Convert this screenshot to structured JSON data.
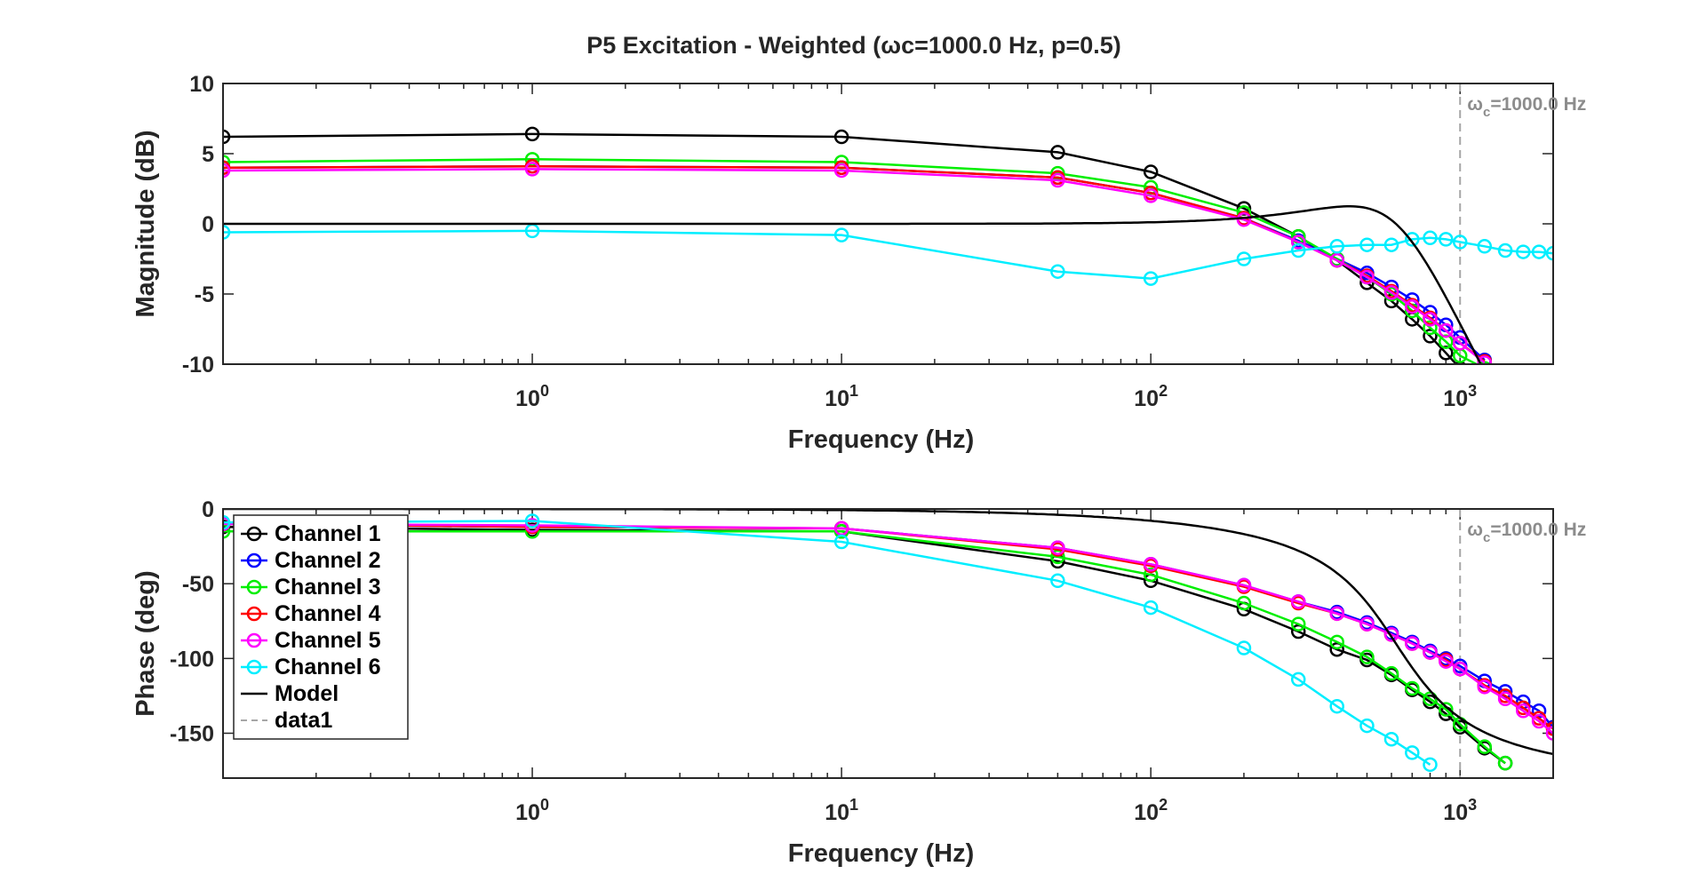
{
  "figure_title": "P5 Excitation - Weighted (ωc=1000.0 Hz, p=0.5)",
  "colors": {
    "Channel 1": "#000000",
    "Channel 2": "#0000ff",
    "Channel 3": "#00ee00",
    "Channel 4": "#ff0000",
    "Channel 5": "#ff00ff",
    "Channel 6": "#00eeff",
    "Model": "#000000",
    "data1": "#a6a6a6"
  },
  "chart_data": [
    {
      "type": "line",
      "title": "P5 Excitation - Weighted (ωc=1000.0 Hz, p=0.5)",
      "xlabel": "Frequency (Hz)",
      "ylabel": "Magnitude (dB)",
      "xscale": "log",
      "xlim": [
        0.1,
        2000
      ],
      "ylim": [
        -10,
        10
      ],
      "xticks": [
        1,
        10,
        100,
        1000
      ],
      "xtick_labels": [
        {
          "base": "10",
          "exp": "0"
        },
        {
          "base": "10",
          "exp": "1"
        },
        {
          "base": "10",
          "exp": "2"
        },
        {
          "base": "10",
          "exp": "3"
        }
      ],
      "yticks": [
        -10,
        -5,
        0,
        5,
        10
      ],
      "ytick_labels": [
        "-10",
        "-5",
        "0",
        "5",
        "10"
      ],
      "grid": false,
      "annotation": {
        "text_main": "ω",
        "text_sub": "c",
        "text_rest": "=1000.0 Hz",
        "x": 1000
      },
      "series": [
        {
          "name": "Channel 1",
          "marker": "o",
          "x": [
            0.1,
            1,
            10,
            50,
            100,
            200,
            300,
            400,
            500,
            600,
            700,
            800,
            900,
            1000,
            1200
          ],
          "y": [
            6.2,
            6.4,
            6.2,
            5.1,
            3.7,
            1.1,
            -0.9,
            -2.6,
            -4.2,
            -5.5,
            -6.8,
            -8.0,
            -9.2,
            -10.3,
            -11.5
          ]
        },
        {
          "name": "Channel 2",
          "marker": "o",
          "x": [
            0.1,
            1,
            10,
            50,
            100,
            200,
            300,
            400,
            500,
            600,
            700,
            800,
            900,
            1000,
            1200
          ],
          "y": [
            4.0,
            4.1,
            4.0,
            3.3,
            2.2,
            0.4,
            -1.2,
            -2.5,
            -3.5,
            -4.5,
            -5.4,
            -6.3,
            -7.2,
            -8.1,
            -9.7
          ]
        },
        {
          "name": "Channel 3",
          "marker": "o",
          "x": [
            0.1,
            1,
            10,
            50,
            100,
            200,
            300,
            400,
            500,
            600,
            700,
            800,
            900,
            1000,
            1200
          ],
          "y": [
            4.4,
            4.6,
            4.4,
            3.6,
            2.6,
            0.8,
            -0.9,
            -2.5,
            -3.8,
            -5.0,
            -6.2,
            -7.4,
            -8.4,
            -9.4,
            -10.3
          ]
        },
        {
          "name": "Channel 4",
          "marker": "o",
          "x": [
            0.1,
            1,
            10,
            50,
            100,
            200,
            300,
            400,
            500,
            600,
            700,
            800,
            900,
            1000,
            1200
          ],
          "y": [
            4.0,
            4.1,
            4.0,
            3.3,
            2.2,
            0.4,
            -1.3,
            -2.6,
            -3.7,
            -4.8,
            -5.8,
            -6.7,
            -7.6,
            -8.5,
            -9.8
          ]
        },
        {
          "name": "Channel 5",
          "marker": "o",
          "x": [
            0.1,
            1,
            10,
            50,
            100,
            200,
            300,
            400,
            500,
            600,
            700,
            800,
            900,
            1000,
            1200
          ],
          "y": [
            3.8,
            3.9,
            3.8,
            3.1,
            2.0,
            0.3,
            -1.3,
            -2.6,
            -3.8,
            -4.9,
            -5.9,
            -6.8,
            -7.6,
            -8.5,
            -9.9
          ]
        },
        {
          "name": "Channel 6",
          "marker": "o",
          "x": [
            0.1,
            1,
            10,
            50,
            100,
            200,
            300,
            400,
            500,
            600,
            700,
            800,
            900,
            1000,
            1200,
            1400,
            1600,
            1800,
            2000
          ],
          "y": [
            -0.6,
            -0.5,
            -0.8,
            -3.4,
            -3.9,
            -2.5,
            -1.9,
            -1.6,
            -1.5,
            -1.5,
            -1.1,
            -1.0,
            -1.1,
            -1.3,
            -1.6,
            -1.9,
            -2.0,
            -2.0,
            -2.1
          ]
        },
        {
          "name": "Model",
          "marker": "none",
          "model": "magnitude"
        }
      ]
    },
    {
      "type": "line",
      "xlabel": "Frequency (Hz)",
      "ylabel": "Phase (deg)",
      "xscale": "log",
      "xlim": [
        0.1,
        2000
      ],
      "ylim": [
        -180,
        0
      ],
      "xticks": [
        1,
        10,
        100,
        1000
      ],
      "xtick_labels": [
        {
          "base": "10",
          "exp": "0"
        },
        {
          "base": "10",
          "exp": "1"
        },
        {
          "base": "10",
          "exp": "2"
        },
        {
          "base": "10",
          "exp": "3"
        }
      ],
      "yticks": [
        -150,
        -100,
        -50,
        0
      ],
      "ytick_labels": [
        "-150",
        "-100",
        "-50",
        "0"
      ],
      "grid": false,
      "annotation": {
        "text_main": "ω",
        "text_sub": "c",
        "text_rest": "=1000.0 Hz",
        "x": 1000
      },
      "legend": {
        "placement": "top-left",
        "entries": [
          "Channel 1",
          "Channel 2",
          "Channel 3",
          "Channel 4",
          "Channel 5",
          "Channel 6",
          "Model",
          "data1"
        ]
      },
      "series": [
        {
          "name": "Channel 1",
          "marker": "o",
          "x": [
            0.1,
            1,
            10,
            50,
            100,
            200,
            300,
            400,
            500,
            600,
            700,
            800,
            900,
            1000,
            1200,
            1400
          ],
          "y": [
            -12,
            -14,
            -15,
            -35,
            -48,
            -67,
            -82,
            -94,
            -101,
            -111,
            -121,
            -129,
            -137,
            -146,
            -160,
            -170
          ]
        },
        {
          "name": "Channel 2",
          "marker": "o",
          "x": [
            0.1,
            1,
            10,
            50,
            100,
            200,
            300,
            400,
            500,
            600,
            700,
            800,
            900,
            1000,
            1200,
            1400,
            1600,
            1800,
            2000
          ],
          "y": [
            -10,
            -12,
            -13,
            -26,
            -37,
            -51,
            -62,
            -69,
            -76,
            -83,
            -89,
            -95,
            -100,
            -105,
            -115,
            -122,
            -129,
            -135,
            -146
          ]
        },
        {
          "name": "Channel 3",
          "marker": "o",
          "x": [
            0.1,
            1,
            10,
            50,
            100,
            200,
            300,
            400,
            500,
            600,
            700,
            800,
            900,
            1000,
            1200,
            1400
          ],
          "y": [
            -15,
            -15,
            -15,
            -32,
            -44,
            -63,
            -77,
            -89,
            -99,
            -110,
            -120,
            -127,
            -134,
            -144,
            -159,
            -170
          ]
        },
        {
          "name": "Channel 4",
          "marker": "o",
          "x": [
            0.1,
            1,
            10,
            50,
            100,
            200,
            300,
            400,
            500,
            600,
            700,
            800,
            900,
            1000,
            1200,
            1400,
            1600,
            1800,
            2000
          ],
          "y": [
            -10,
            -12,
            -13,
            -27,
            -38,
            -52,
            -63,
            -70,
            -77,
            -84,
            -90,
            -96,
            -101,
            -107,
            -118,
            -125,
            -133,
            -140,
            -147
          ]
        },
        {
          "name": "Channel 5",
          "marker": "o",
          "x": [
            0.1,
            1,
            10,
            50,
            100,
            200,
            300,
            400,
            500,
            600,
            700,
            800,
            900,
            1000,
            1200,
            1400,
            1600,
            1800,
            2000
          ],
          "y": [
            -10,
            -11,
            -13,
            -26,
            -37,
            -51,
            -62,
            -70,
            -77,
            -84,
            -90,
            -96,
            -102,
            -107,
            -119,
            -127,
            -135,
            -142,
            -150
          ]
        },
        {
          "name": "Channel 6",
          "marker": "o",
          "x": [
            0.1,
            1,
            10,
            50,
            100,
            200,
            300,
            400,
            500,
            600,
            700,
            800
          ],
          "y": [
            -9,
            -8,
            -22,
            -48,
            -66,
            -93,
            -114,
            -132,
            -145,
            -154,
            -163,
            -171
          ]
        },
        {
          "name": "Model",
          "marker": "none",
          "model": "phase"
        }
      ]
    }
  ]
}
